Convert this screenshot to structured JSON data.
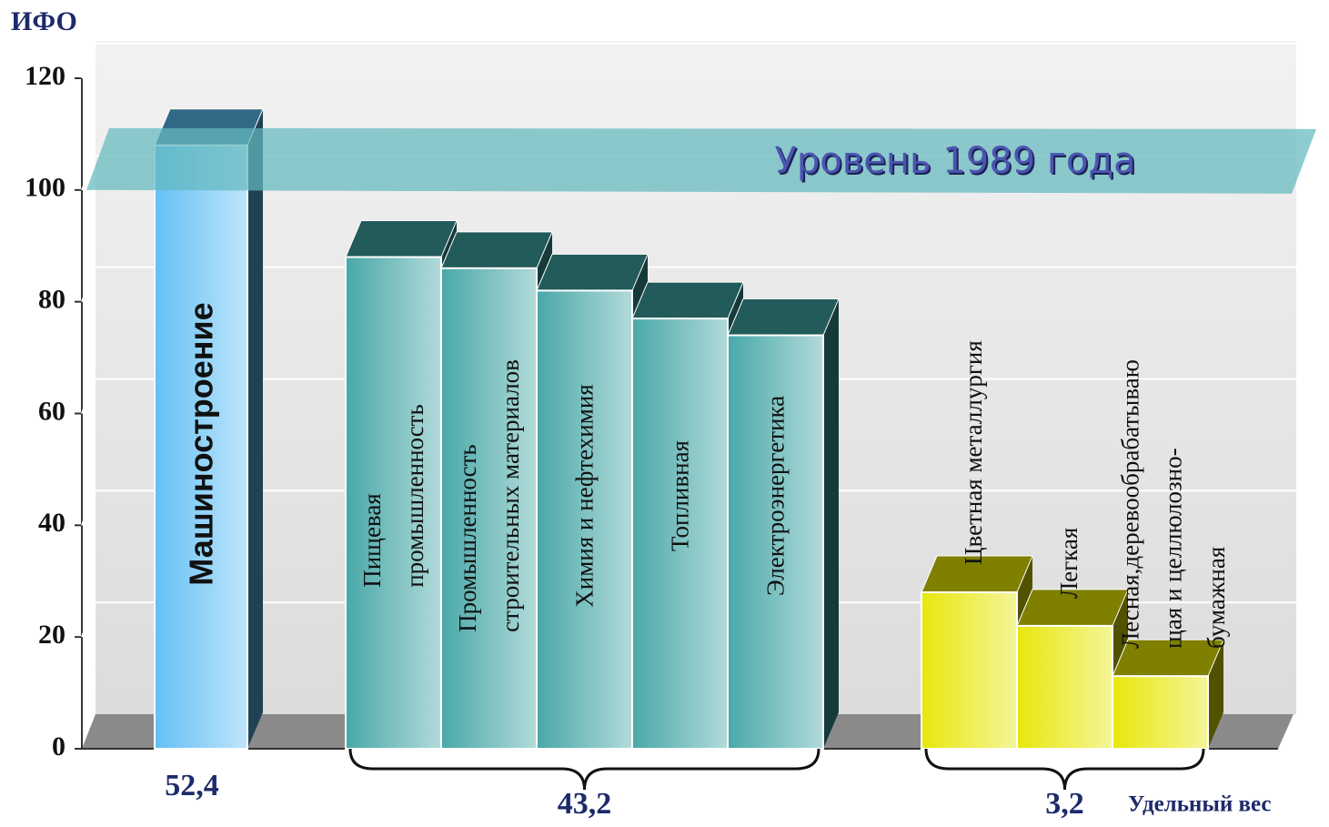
{
  "chart_data": {
    "type": "bar3d",
    "y_label": "ИФО",
    "x_label": "Удельный вес",
    "ylim": [
      0,
      120
    ],
    "yticks": [
      0,
      20,
      40,
      60,
      80,
      100,
      120
    ],
    "grid": true,
    "reference": {
      "label": "Уровень 1989 года",
      "value": 100
    },
    "groups": [
      {
        "share": {
          "value": 52.4,
          "label": "52,4"
        },
        "color": "#5cbdf4",
        "categories": [
          "Машиностроение"
        ],
        "values": [
          108
        ]
      },
      {
        "share": {
          "value": 43.2,
          "label": "43,2"
        },
        "color": "#3fa3a3",
        "categories": [
          "Пищевая\nпромышленность",
          "Промышленность\nстроительных материалов",
          "Химия и нефтехимия",
          "Топливная",
          "Электроэнергетика"
        ],
        "values": [
          88,
          86,
          82,
          77,
          74
        ]
      },
      {
        "share": {
          "value": 3.2,
          "label": "3,2"
        },
        "color": "#e6e600",
        "categories": [
          "Цветная металлургия",
          "Легкая",
          "Лесная,деревообрабатываю\nщая и целлюлозно-\nбумажная"
        ],
        "values": [
          28,
          22,
          13
        ]
      }
    ]
  }
}
